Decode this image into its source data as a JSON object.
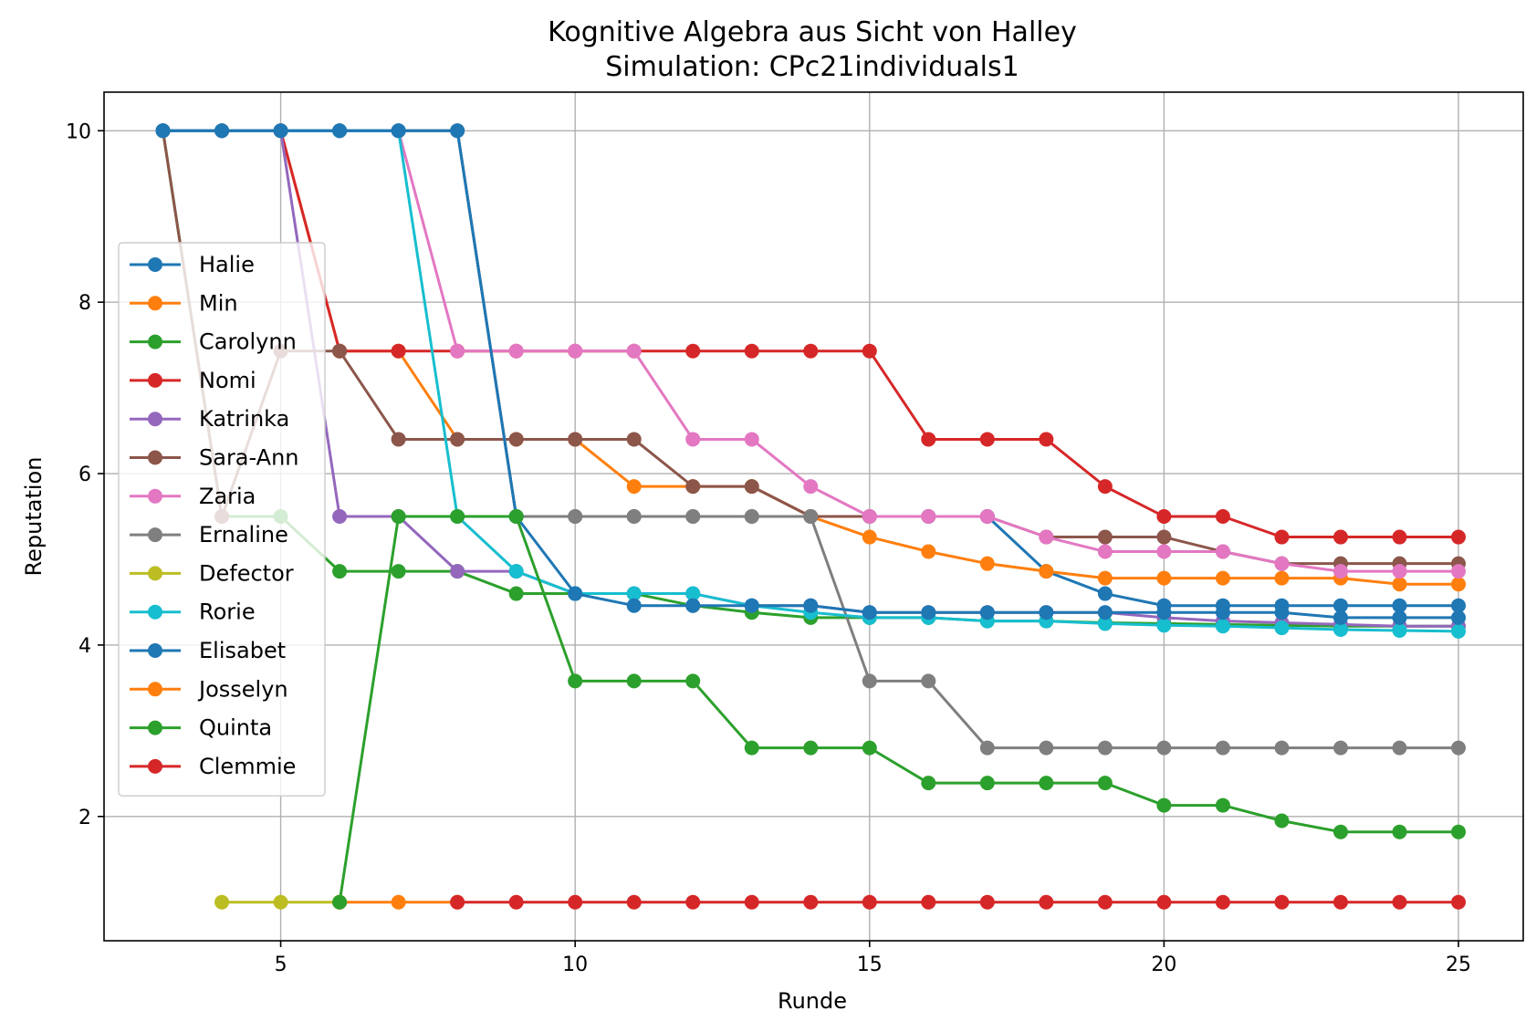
{
  "chart_data": {
    "type": "line",
    "title": "Kognitive Algebra aus Sicht von Halley",
    "subtitle": "Simulation: CPc21individuals1",
    "xlabel": "Runde",
    "ylabel": "Reputation",
    "xlim": [
      2,
      26.1
    ],
    "ylim": [
      0.55,
      10.45
    ],
    "xticks": [
      5,
      10,
      15,
      20,
      25
    ],
    "yticks": [
      2,
      4,
      6,
      8,
      10
    ],
    "grid": true,
    "legend_position": "center-left",
    "series": [
      {
        "name": "Halie",
        "color": "#1f77b4",
        "x": [
          3,
          4,
          5,
          6,
          7,
          8,
          9,
          10,
          11,
          12,
          13,
          14,
          15,
          16,
          17,
          18,
          19,
          20,
          21,
          22,
          23,
          24,
          25
        ],
        "y": [
          10,
          10,
          10,
          10,
          10,
          10,
          5.5,
          5.5,
          5.5,
          5.5,
          5.5,
          5.5,
          5.5,
          5.5,
          5.5,
          4.86,
          4.6,
          4.46,
          4.46,
          4.46,
          4.46,
          4.46,
          4.46
        ]
      },
      {
        "name": "Min",
        "color": "#ff7f0e",
        "x": [
          3,
          4,
          5,
          6,
          7,
          8,
          9,
          10,
          11,
          12,
          13,
          14,
          15,
          16,
          17,
          18,
          19,
          20,
          21,
          22,
          23,
          24,
          25
        ],
        "y": [
          10,
          10,
          10,
          7.43,
          7.43,
          6.4,
          6.4,
          6.4,
          5.85,
          5.85,
          5.85,
          5.5,
          5.26,
          5.09,
          4.95,
          4.86,
          4.78,
          4.78,
          4.78,
          4.78,
          4.78,
          4.71,
          4.71
        ]
      },
      {
        "name": "Carolynn",
        "color": "#2ca02c",
        "x": [
          3,
          4,
          5,
          6,
          7,
          8,
          9,
          10,
          11,
          12,
          13,
          14,
          15,
          16,
          17,
          18,
          19,
          20,
          21,
          22,
          23,
          24,
          25
        ],
        "y": [
          10,
          5.5,
          5.5,
          4.86,
          4.86,
          4.86,
          4.6,
          4.6,
          4.6,
          4.46,
          4.38,
          4.32,
          4.32,
          4.32,
          4.28,
          4.28,
          4.26,
          4.25,
          4.24,
          4.23,
          4.22,
          4.22,
          4.22
        ]
      },
      {
        "name": "Nomi",
        "color": "#d62728",
        "x": [
          3,
          4,
          5,
          6,
          7,
          8,
          9,
          10,
          11,
          12,
          13,
          14,
          15,
          16,
          17,
          18,
          19,
          20,
          21,
          22,
          23,
          24,
          25
        ],
        "y": [
          10,
          10,
          10,
          7.43,
          7.43,
          7.43,
          7.43,
          7.43,
          7.43,
          7.43,
          7.43,
          7.43,
          7.43,
          6.4,
          6.4,
          6.4,
          5.85,
          5.5,
          5.5,
          5.26,
          5.26,
          5.26,
          5.26
        ]
      },
      {
        "name": "Katrinka",
        "color": "#9467bd",
        "x": [
          3,
          4,
          5,
          6,
          7,
          8,
          9,
          10,
          11,
          12,
          13,
          14,
          15,
          16,
          17,
          18,
          19,
          20,
          21,
          22,
          23,
          24,
          25
        ],
        "y": [
          10,
          10,
          10,
          5.5,
          5.5,
          4.86,
          4.86,
          4.6,
          4.6,
          4.6,
          4.46,
          4.46,
          4.38,
          4.38,
          4.38,
          4.38,
          4.38,
          4.32,
          4.28,
          4.26,
          4.24,
          4.22,
          4.22
        ]
      },
      {
        "name": "Sara-Ann",
        "color": "#8c564b",
        "x": [
          3,
          4,
          5,
          6,
          7,
          8,
          9,
          10,
          11,
          12,
          13,
          14,
          15,
          16,
          17,
          18,
          19,
          20,
          21,
          22,
          23,
          24,
          25
        ],
        "y": [
          10,
          5.5,
          7.43,
          7.43,
          6.4,
          6.4,
          6.4,
          6.4,
          6.4,
          5.85,
          5.85,
          5.5,
          5.5,
          5.5,
          5.5,
          5.26,
          5.26,
          5.26,
          5.09,
          4.95,
          4.95,
          4.95,
          4.95
        ]
      },
      {
        "name": "Zaria",
        "color": "#e377c2",
        "x": [
          3,
          4,
          5,
          6,
          7,
          8,
          9,
          10,
          11,
          12,
          13,
          14,
          15,
          16,
          17,
          18,
          19,
          20,
          21,
          22,
          23,
          24,
          25
        ],
        "y": [
          10,
          10,
          10,
          10,
          10,
          7.43,
          7.43,
          7.43,
          7.43,
          6.4,
          6.4,
          5.85,
          5.5,
          5.5,
          5.5,
          5.26,
          5.09,
          5.09,
          5.09,
          4.95,
          4.86,
          4.86,
          4.86
        ]
      },
      {
        "name": "Ernaline",
        "color": "#7f7f7f",
        "x": [
          3,
          4,
          5,
          6,
          7,
          8,
          9,
          10,
          11,
          12,
          13,
          14,
          15,
          16,
          17,
          18,
          19,
          20,
          21,
          22,
          23,
          24,
          25
        ],
        "y": [
          10,
          10,
          10,
          10,
          10,
          10,
          5.5,
          5.5,
          5.5,
          5.5,
          5.5,
          5.5,
          3.58,
          3.58,
          2.8,
          2.8,
          2.8,
          2.8,
          2.8,
          2.8,
          2.8,
          2.8,
          2.8
        ]
      },
      {
        "name": "Defector",
        "color": "#bcbd22",
        "x": [
          4,
          5,
          6
        ],
        "y": [
          1,
          1,
          1
        ]
      },
      {
        "name": "Rorie",
        "color": "#17becf",
        "x": [
          3,
          4,
          5,
          6,
          7,
          8,
          9,
          10,
          11,
          12,
          13,
          14,
          15,
          16,
          17,
          18,
          19,
          20,
          21,
          22,
          23,
          24,
          25
        ],
        "y": [
          10,
          10,
          10,
          10,
          10,
          5.5,
          4.86,
          4.6,
          4.6,
          4.6,
          4.46,
          4.38,
          4.32,
          4.32,
          4.28,
          4.28,
          4.25,
          4.23,
          4.22,
          4.2,
          4.18,
          4.17,
          4.16
        ]
      },
      {
        "name": "Elisabet",
        "color": "#1f77b4",
        "x": [
          3,
          4,
          5,
          6,
          7,
          8,
          9,
          10,
          11,
          12,
          13,
          14,
          15,
          16,
          17,
          18,
          19,
          20,
          21,
          22,
          23,
          24,
          25
        ],
        "y": [
          10,
          10,
          10,
          10,
          10,
          10,
          5.5,
          4.6,
          4.46,
          4.46,
          4.46,
          4.46,
          4.38,
          4.38,
          4.38,
          4.38,
          4.38,
          4.38,
          4.38,
          4.38,
          4.32,
          4.32,
          4.32
        ]
      },
      {
        "name": "Josselyn",
        "color": "#ff7f0e",
        "x": [
          6,
          7,
          8
        ],
        "y": [
          1,
          1,
          1
        ]
      },
      {
        "name": "Quinta",
        "color": "#2ca02c",
        "x": [
          6,
          7,
          8,
          9,
          10,
          11,
          12,
          13,
          14,
          15,
          16,
          17,
          18,
          19,
          20,
          21,
          22,
          23,
          24,
          25
        ],
        "y": [
          1,
          5.5,
          5.5,
          5.5,
          3.58,
          3.58,
          3.58,
          2.8,
          2.8,
          2.8,
          2.39,
          2.39,
          2.39,
          2.39,
          2.13,
          2.13,
          1.95,
          1.82,
          1.82,
          1.82
        ]
      },
      {
        "name": "Clemmie",
        "color": "#d62728",
        "x": [
          8,
          9,
          10,
          11,
          12,
          13,
          14,
          15,
          16,
          17,
          18,
          19,
          20,
          21,
          22,
          23,
          24,
          25
        ],
        "y": [
          1,
          1,
          1,
          1,
          1,
          1,
          1,
          1,
          1,
          1,
          1,
          1,
          1,
          1,
          1,
          1,
          1,
          1
        ]
      }
    ]
  }
}
